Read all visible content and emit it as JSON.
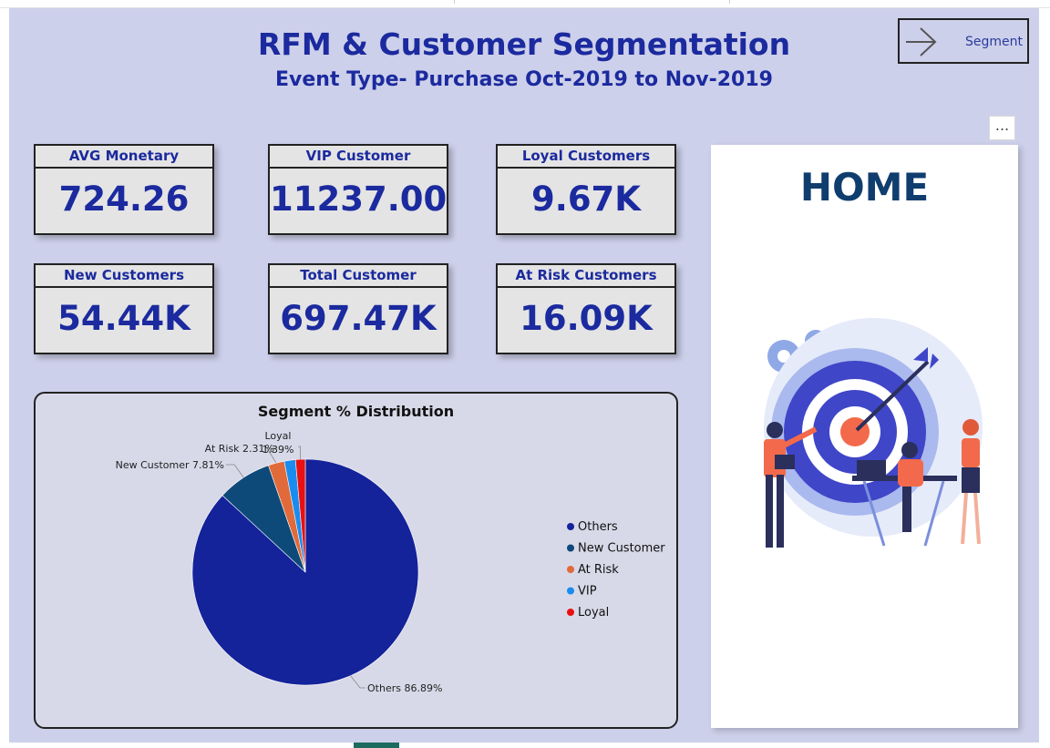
{
  "header": {
    "title": "RFM & Customer Segmentation",
    "subtitle": "Event Type- Purchase Oct-2019 to Nov-2019"
  },
  "nav": {
    "segment_label": "Segment",
    "icon": "arrow-right-icon"
  },
  "more_label": "...",
  "kpis": [
    {
      "label": "AVG Monetary",
      "value": "724.26"
    },
    {
      "label": "VIP Customer",
      "value": "11237.00"
    },
    {
      "label": "Loyal Customers",
      "value": "9.67K"
    },
    {
      "label": "New Customers",
      "value": "54.44K"
    },
    {
      "label": "Total Customer",
      "value": "697.47K"
    },
    {
      "label": "At Risk Customers",
      "value": "16.09K"
    }
  ],
  "home": {
    "title": "HOME",
    "illustration": "target-arrow-team-illustration"
  },
  "colors": {
    "background": "#cdd0ea",
    "accent": "#1b2a9e",
    "card": "#e4e4e4"
  },
  "chart_data": {
    "type": "pie",
    "title": "Segment % Distribution",
    "legend_position": "right",
    "slices": [
      {
        "name": "Others",
        "value": 86.89,
        "color": "#14239a",
        "label": "Others 86.89%"
      },
      {
        "name": "New Customer",
        "value": 7.81,
        "color": "#0d4a7a",
        "label": "New Customer 7.81%"
      },
      {
        "name": "At Risk",
        "value": 2.31,
        "color": "#e06a3a",
        "label": "At Risk 2.31%"
      },
      {
        "name": "VIP",
        "value": 1.6,
        "color": "#1a8cf0",
        "label": ""
      },
      {
        "name": "Loyal",
        "value": 1.39,
        "color": "#e81010",
        "label": "Loyal 1.39%"
      }
    ]
  }
}
